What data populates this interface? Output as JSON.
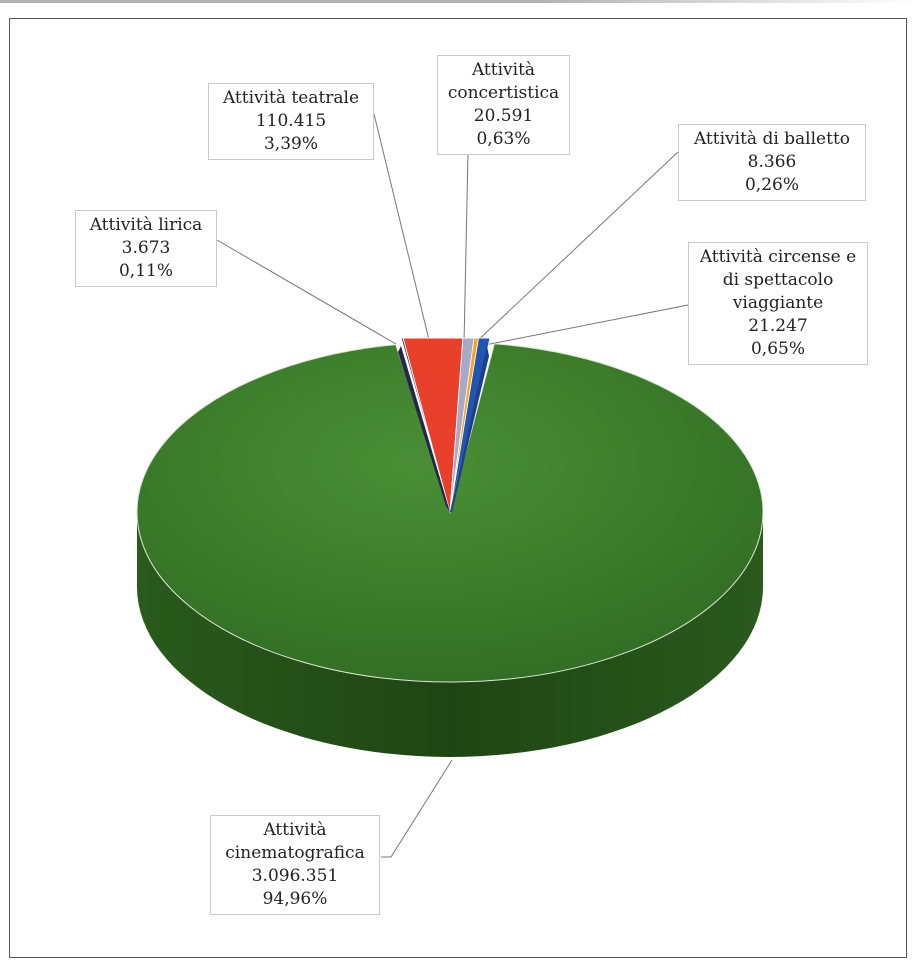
{
  "chart_data": {
    "type": "pie",
    "style": "3d",
    "title": "",
    "slices": [
      {
        "name": "Attività lirica",
        "value": 3673,
        "value_label": "3.673",
        "percent_label": "0,11%",
        "color": "#3b3f6b"
      },
      {
        "name": "Attività teatrale",
        "value": 110415,
        "value_label": "110.415",
        "percent_label": "3,39%",
        "color": "#e8402a"
      },
      {
        "name": "Attività concertistica",
        "value": 20591,
        "value_label": "20.591",
        "percent_label": "0,63%",
        "color": "#a8a8c8"
      },
      {
        "name": "Attività di balletto",
        "value": 8366,
        "value_label": "8.366",
        "percent_label": "0,26%",
        "color": "#f5a623"
      },
      {
        "name": "Attività circense e di spettacolo viaggiante",
        "value": 21247,
        "value_label": "21.247",
        "percent_label": "0,65%",
        "color": "#2255b0"
      },
      {
        "name": "Attività cinematografica",
        "value": 3096351,
        "value_label": "3.096.351",
        "percent_label": "94,96%",
        "color": "#3b7f2d"
      }
    ],
    "label_lines": {
      "lirica": [
        "Attività lirica",
        "3.673",
        "0,11%"
      ],
      "teatrale": [
        "Attività teatrale",
        "110.415",
        "3,39%"
      ],
      "concertistica": [
        "Attività",
        "concertistica",
        "20.591",
        "0,63%"
      ],
      "balletto": [
        "Attività di balletto",
        "8.366",
        "0,26%"
      ],
      "circense": [
        "Attività circense e",
        "di spettacolo",
        "viaggiante",
        "21.247",
        "0,65%"
      ],
      "cinematografica": [
        "Attività",
        "cinematografica",
        "3.096.351",
        "94,96%"
      ]
    }
  }
}
